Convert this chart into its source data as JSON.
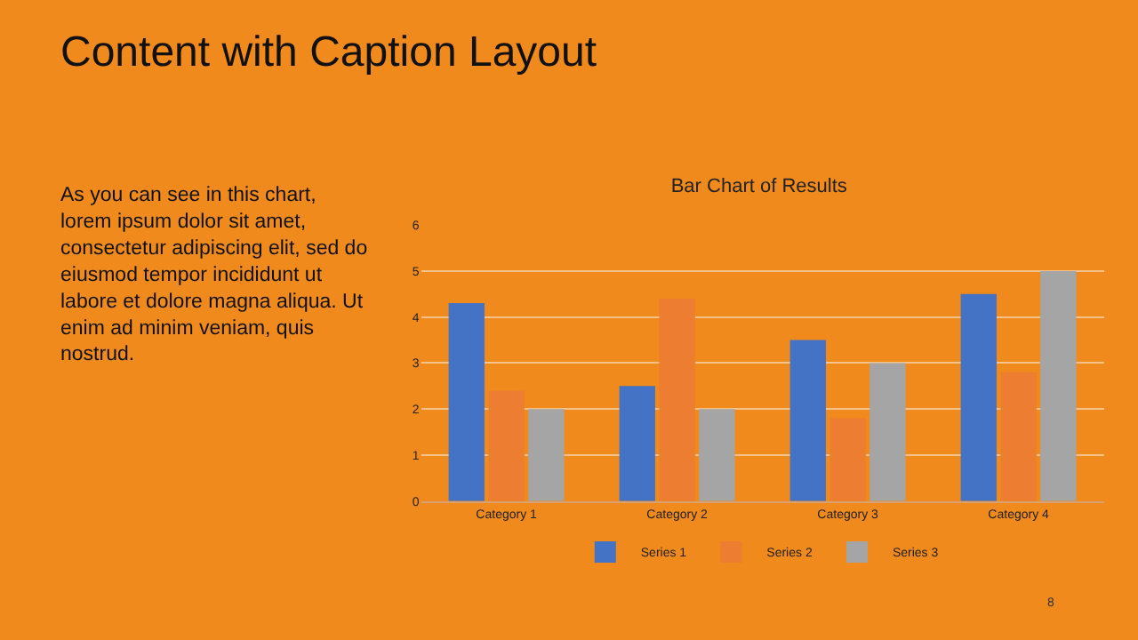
{
  "chart_data": {
    "type": "bar",
    "title": "Bar Chart of Results",
    "categories": [
      "Category 1",
      "Category 2",
      "Category 3",
      "Category 4"
    ],
    "series": [
      {
        "name": "Series 1",
        "color": "#4472c4",
        "values": [
          4.3,
          2.5,
          3.5,
          4.5
        ]
      },
      {
        "name": "Series 2",
        "color": "#ed7d31",
        "values": [
          2.4,
          4.4,
          1.8,
          2.8
        ]
      },
      {
        "name": "Series 3",
        "color": "#a5a5a5",
        "values": [
          2,
          2,
          3,
          5
        ]
      }
    ],
    "ylim": [
      0,
      6
    ],
    "yticks": [
      0,
      1,
      2,
      3,
      4,
      5,
      6
    ],
    "grid": "y",
    "legend": "bottom",
    "annotations": [
      "Content with Caption Layout",
      "As you can see in this chart,\nlorem ipsum dolor sit amet,\nconsectetur adipiscing elit, sed do\neiusmod tempor incididunt ut\nlabore et dolore magna aliqua. Ut\nenim ad minim veniam, quis\nnostrud.",
      "8"
    ]
  }
}
